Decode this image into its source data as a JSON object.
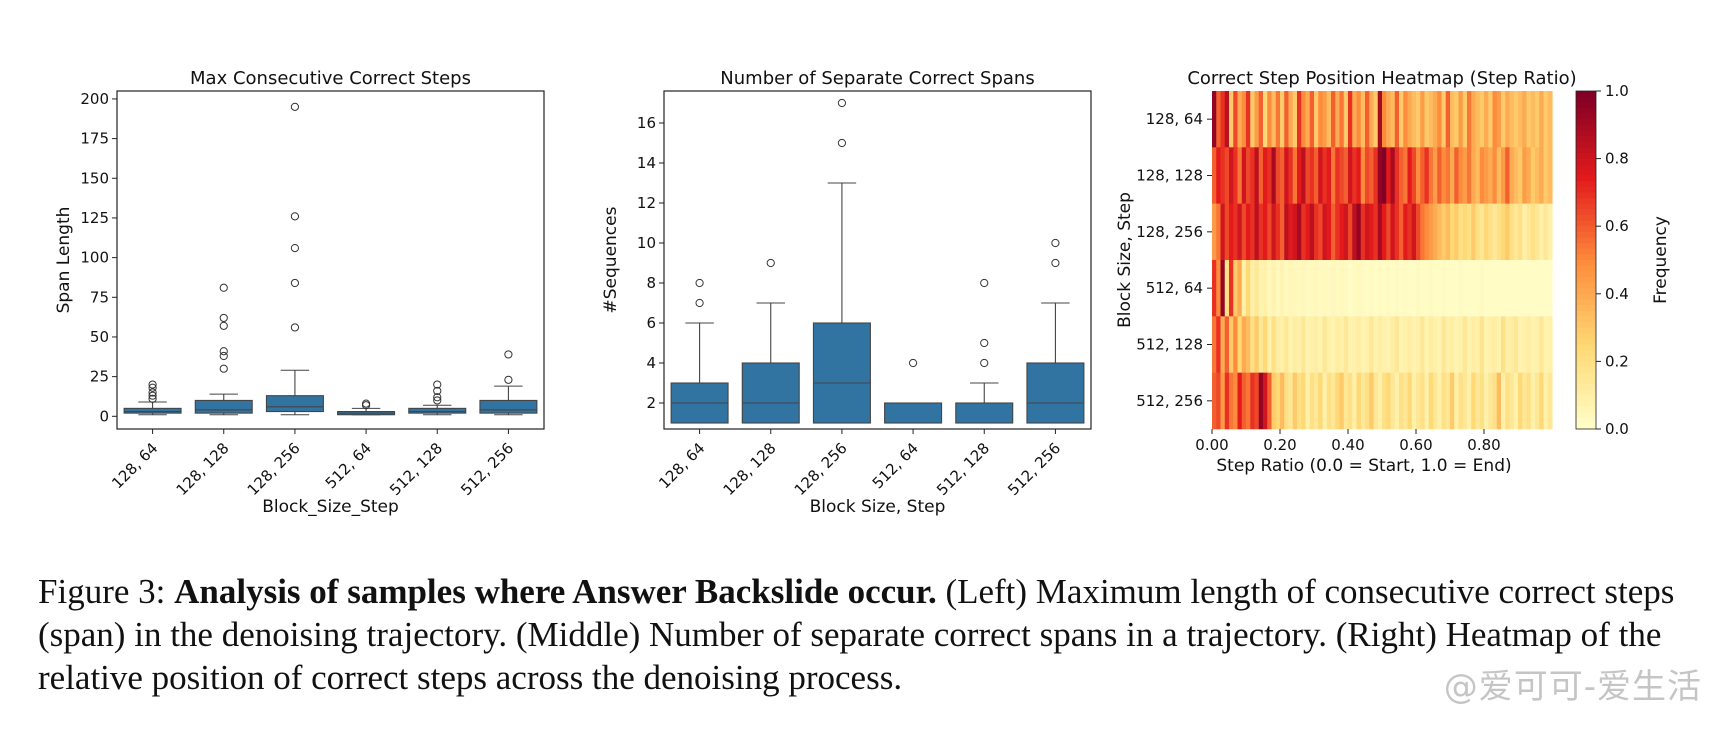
{
  "chart_data": [
    {
      "type": "box",
      "title": "Max Consecutive Correct Steps",
      "xlabel": "Block_Size_Step",
      "ylabel": "Span Length",
      "ylim": [
        -8,
        205
      ],
      "yticks": [
        0,
        25,
        50,
        75,
        100,
        125,
        150,
        175,
        200
      ],
      "categories": [
        "128, 64",
        "128, 128",
        "128, 256",
        "512, 64",
        "512, 128",
        "512, 256"
      ],
      "color": "#3274a1",
      "boxes": [
        {
          "q1": 2,
          "median": 3,
          "q3": 5,
          "whisker_low": 1,
          "whisker_high": 9,
          "outliers": [
            11,
            13,
            15,
            18,
            20
          ]
        },
        {
          "q1": 2,
          "median": 4,
          "q3": 10,
          "whisker_low": 1,
          "whisker_high": 14,
          "outliers": [
            30,
            38,
            41,
            57,
            62,
            81
          ]
        },
        {
          "q1": 3,
          "median": 6,
          "q3": 13,
          "whisker_low": 1,
          "whisker_high": 29,
          "outliers": [
            56,
            84,
            106,
            126,
            195
          ]
        },
        {
          "q1": 1,
          "median": 2,
          "q3": 3,
          "whisker_low": 1,
          "whisker_high": 5,
          "outliers": [
            7,
            8
          ]
        },
        {
          "q1": 2,
          "median": 3,
          "q3": 5,
          "whisker_low": 1,
          "whisker_high": 7,
          "outliers": [
            10,
            12,
            16,
            20
          ]
        },
        {
          "q1": 2,
          "median": 4,
          "q3": 10,
          "whisker_low": 1,
          "whisker_high": 19,
          "outliers": [
            23,
            39
          ]
        }
      ]
    },
    {
      "type": "box",
      "title": "Number of Separate Correct Spans",
      "xlabel": "Block Size, Step",
      "ylabel": "#Sequences",
      "ylim": [
        0.7,
        17.6
      ],
      "yticks": [
        2,
        4,
        6,
        8,
        10,
        12,
        14,
        16
      ],
      "categories": [
        "128, 64",
        "128, 128",
        "128, 256",
        "512, 64",
        "512, 128",
        "512, 256"
      ],
      "color": "#3274a1",
      "boxes": [
        {
          "q1": 1,
          "median": 2,
          "q3": 3,
          "whisker_low": 1,
          "whisker_high": 6,
          "outliers": [
            7,
            8
          ]
        },
        {
          "q1": 1,
          "median": 2,
          "q3": 4,
          "whisker_low": 1,
          "whisker_high": 7,
          "outliers": [
            9
          ]
        },
        {
          "q1": 1,
          "median": 3,
          "q3": 6,
          "whisker_low": 1,
          "whisker_high": 13,
          "outliers": [
            15,
            17
          ]
        },
        {
          "q1": 1,
          "median": 2,
          "q3": 2,
          "whisker_low": 1,
          "whisker_high": 2,
          "outliers": [
            4
          ]
        },
        {
          "q1": 1,
          "median": 1,
          "q3": 2,
          "whisker_low": 1,
          "whisker_high": 3,
          "outliers": [
            4,
            5,
            8
          ]
        },
        {
          "q1": 1,
          "median": 2,
          "q3": 4,
          "whisker_low": 1,
          "whisker_high": 7,
          "outliers": [
            9,
            10
          ]
        }
      ]
    },
    {
      "type": "heatmap",
      "title": "Correct Step Position Heatmap (Step Ratio)",
      "xlabel": "Step Ratio (0.0 = Start, 1.0 = End)",
      "ylabel": "Block Size, Step",
      "xticks": [
        "0.00",
        "0.20",
        "0.40",
        "0.60",
        "0.80"
      ],
      "rows": [
        "128, 64",
        "128, 128",
        "128, 256",
        "512, 64",
        "512, 128",
        "512, 256"
      ],
      "colorbar": {
        "label": "Frequency",
        "ticks": [
          "0.0",
          "0.2",
          "0.4",
          "0.6",
          "0.8",
          "1.0"
        ]
      },
      "values": [
        [
          0.95,
          0.6,
          0.7,
          0.85,
          0.3,
          0.65,
          0.4,
          0.5,
          0.7,
          0.3,
          0.45,
          0.6,
          0.25,
          0.5,
          0.35,
          0.55,
          0.3,
          0.6,
          0.4,
          0.3,
          0.7,
          0.5,
          0.4,
          0.6,
          0.3,
          0.5,
          0.45,
          0.35,
          0.6,
          0.4,
          0.55,
          0.3,
          0.7,
          0.4,
          0.5,
          0.35,
          0.6,
          0.4,
          0.3,
          0.9,
          0.5,
          0.4,
          0.35,
          0.6,
          0.3,
          0.5,
          0.4,
          0.35,
          0.3,
          0.45,
          0.3,
          0.35,
          0.4,
          0.5,
          0.3,
          0.6,
          0.35,
          0.3,
          0.45,
          0.3,
          0.55,
          0.4,
          0.35,
          0.3,
          0.4,
          0.3,
          0.5,
          0.45,
          0.3,
          0.4,
          0.35,
          0.3,
          0.35,
          0.4,
          0.3,
          0.35,
          0.3,
          0.4,
          0.3,
          0.35
        ],
        [
          0.6,
          0.75,
          0.7,
          0.65,
          0.8,
          0.7,
          0.55,
          0.8,
          0.65,
          0.7,
          0.85,
          0.6,
          0.75,
          0.7,
          0.9,
          0.65,
          0.6,
          0.8,
          0.7,
          0.55,
          0.75,
          0.85,
          0.65,
          0.7,
          0.6,
          0.8,
          0.7,
          0.75,
          0.55,
          0.7,
          0.65,
          0.6,
          0.8,
          0.7,
          0.75,
          0.5,
          0.65,
          0.6,
          0.7,
          0.95,
          1.0,
          0.75,
          0.9,
          0.7,
          0.6,
          0.55,
          0.75,
          0.65,
          0.5,
          0.6,
          0.7,
          0.55,
          0.45,
          0.6,
          0.5,
          0.55,
          0.4,
          0.6,
          0.5,
          0.45,
          0.55,
          0.4,
          0.35,
          0.5,
          0.45,
          0.4,
          0.5,
          0.35,
          0.45,
          0.6,
          0.4,
          0.35,
          0.3,
          0.45,
          0.4,
          0.3,
          0.35,
          0.4,
          0.3,
          0.35
        ],
        [
          0.45,
          0.55,
          0.8,
          0.65,
          0.75,
          0.7,
          0.8,
          0.65,
          0.75,
          0.7,
          0.85,
          0.7,
          0.75,
          0.65,
          0.8,
          0.7,
          0.6,
          0.85,
          0.75,
          0.8,
          0.9,
          0.7,
          0.75,
          0.85,
          0.7,
          0.65,
          0.8,
          0.75,
          0.6,
          0.7,
          0.75,
          0.8,
          0.65,
          0.85,
          0.95,
          0.7,
          0.8,
          0.75,
          0.7,
          0.9,
          0.75,
          0.65,
          0.8,
          0.7,
          0.6,
          0.75,
          0.7,
          0.8,
          0.65,
          0.55,
          0.5,
          0.45,
          0.4,
          0.35,
          0.3,
          0.35,
          0.25,
          0.3,
          0.2,
          0.25,
          0.2,
          0.3,
          0.2,
          0.15,
          0.25,
          0.2,
          0.15,
          0.2,
          0.25,
          0.3,
          0.2,
          0.15,
          0.2,
          0.1,
          0.15,
          0.2,
          0.15,
          0.1,
          0.15,
          0.1
        ],
        [
          0.7,
          0.5,
          0.95,
          0.2,
          0.7,
          0.3,
          0.4,
          0.1,
          0.25,
          0.1,
          0.15,
          0.08,
          0.1,
          0.05,
          0.08,
          0.05,
          0.07,
          0.04,
          0.06,
          0.05,
          0.04,
          0.05,
          0.03,
          0.04,
          0.05,
          0.03,
          0.04,
          0.03,
          0.05,
          0.03,
          0.04,
          0.03,
          0.02,
          0.03,
          0.04,
          0.03,
          0.02,
          0.03,
          0.02,
          0.03,
          0.02,
          0.03,
          0.02,
          0.03,
          0.02,
          0.03,
          0.02,
          0.02,
          0.03,
          0.02,
          0.02,
          0.03,
          0.02,
          0.02,
          0.03,
          0.02,
          0.02,
          0.02,
          0.03,
          0.02,
          0.02,
          0.02,
          0.02,
          0.03,
          0.02,
          0.02,
          0.02,
          0.02,
          0.02,
          0.02,
          0.02,
          0.02,
          0.02,
          0.02,
          0.02,
          0.02,
          0.02,
          0.02,
          0.02,
          0.02
        ],
        [
          0.55,
          0.7,
          0.4,
          0.6,
          0.3,
          0.5,
          0.25,
          0.4,
          0.35,
          0.2,
          0.3,
          0.15,
          0.25,
          0.1,
          0.2,
          0.12,
          0.1,
          0.15,
          0.08,
          0.12,
          0.1,
          0.15,
          0.08,
          0.1,
          0.12,
          0.08,
          0.15,
          0.1,
          0.08,
          0.12,
          0.1,
          0.15,
          0.08,
          0.1,
          0.12,
          0.08,
          0.1,
          0.15,
          0.08,
          0.12,
          0.1,
          0.08,
          0.12,
          0.15,
          0.08,
          0.1,
          0.12,
          0.08,
          0.1,
          0.15,
          0.08,
          0.12,
          0.1,
          0.08,
          0.15,
          0.1,
          0.12,
          0.08,
          0.1,
          0.15,
          0.08,
          0.12,
          0.1,
          0.18,
          0.08,
          0.1,
          0.12,
          0.08,
          0.2,
          0.1,
          0.12,
          0.15,
          0.08,
          0.1,
          0.12,
          0.08,
          0.1,
          0.15,
          0.08,
          0.1
        ],
        [
          0.6,
          0.65,
          0.45,
          0.7,
          0.55,
          0.5,
          0.75,
          0.6,
          0.55,
          0.7,
          0.65,
          0.95,
          0.8,
          0.6,
          0.3,
          0.25,
          0.35,
          0.2,
          0.15,
          0.3,
          0.2,
          0.25,
          0.1,
          0.2,
          0.15,
          0.25,
          0.1,
          0.2,
          0.15,
          0.25,
          0.3,
          0.15,
          0.2,
          0.1,
          0.25,
          0.15,
          0.2,
          0.3,
          0.15,
          0.1,
          0.2,
          0.25,
          0.15,
          0.1,
          0.2,
          0.15,
          0.25,
          0.1,
          0.15,
          0.2,
          0.1,
          0.25,
          0.15,
          0.1,
          0.2,
          0.15,
          0.3,
          0.1,
          0.2,
          0.15,
          0.1,
          0.25,
          0.15,
          0.2,
          0.1,
          0.15,
          0.2,
          0.35,
          0.1,
          0.2,
          0.15,
          0.1,
          0.25,
          0.15,
          0.2,
          0.1,
          0.15,
          0.25,
          0.1,
          0.15
        ]
      ]
    }
  ],
  "caption": {
    "label": "Figure 3:",
    "bold": "Analysis of samples where Answer Backslide occur.",
    "text": "(Left) Maximum length of consecutive correct steps (span) in the denoising trajectory. (Middle) Number of separate correct spans in a trajectory. (Right) Heatmap of the relative position of correct steps across the denoising process."
  },
  "watermark": "@爱可可-爱生活"
}
